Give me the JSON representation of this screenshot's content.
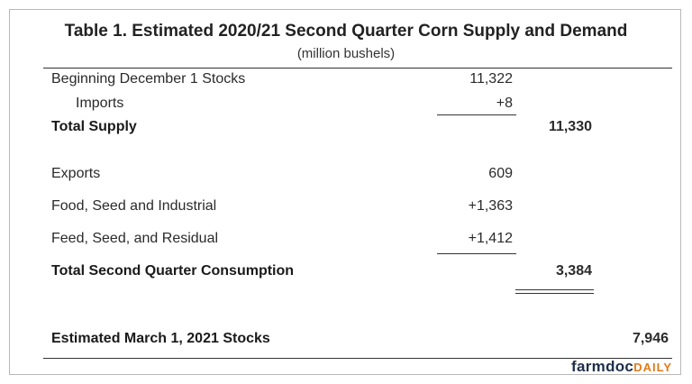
{
  "table": {
    "title": "Table 1. Estimated 2020/21 Second Quarter Corn Supply and Demand",
    "units": "(million bushels)",
    "rows": {
      "beginning_stocks": {
        "label": "Beginning December 1 Stocks",
        "value": "11,322"
      },
      "imports": {
        "label": "Imports",
        "value": "+8"
      },
      "total_supply": {
        "label": "Total Supply",
        "value": "11,330"
      },
      "exports": {
        "label": "Exports",
        "value": "609"
      },
      "fsi": {
        "label": "Food, Seed and Industrial",
        "value": "+1,363"
      },
      "feed": {
        "label": "Feed, Seed, and Residual",
        "value": "+1,412"
      },
      "total_consumption": {
        "label": "Total Second Quarter Consumption",
        "value": "3,384"
      },
      "ending_stocks": {
        "label": "Estimated March 1, 2021 Stocks",
        "value": "7,946"
      }
    }
  },
  "brand": {
    "part1": "farmdoc",
    "part2": "DAILY"
  },
  "colors": {
    "brand_dark": "#1f2f4a",
    "brand_accent": "#e07b1a"
  }
}
